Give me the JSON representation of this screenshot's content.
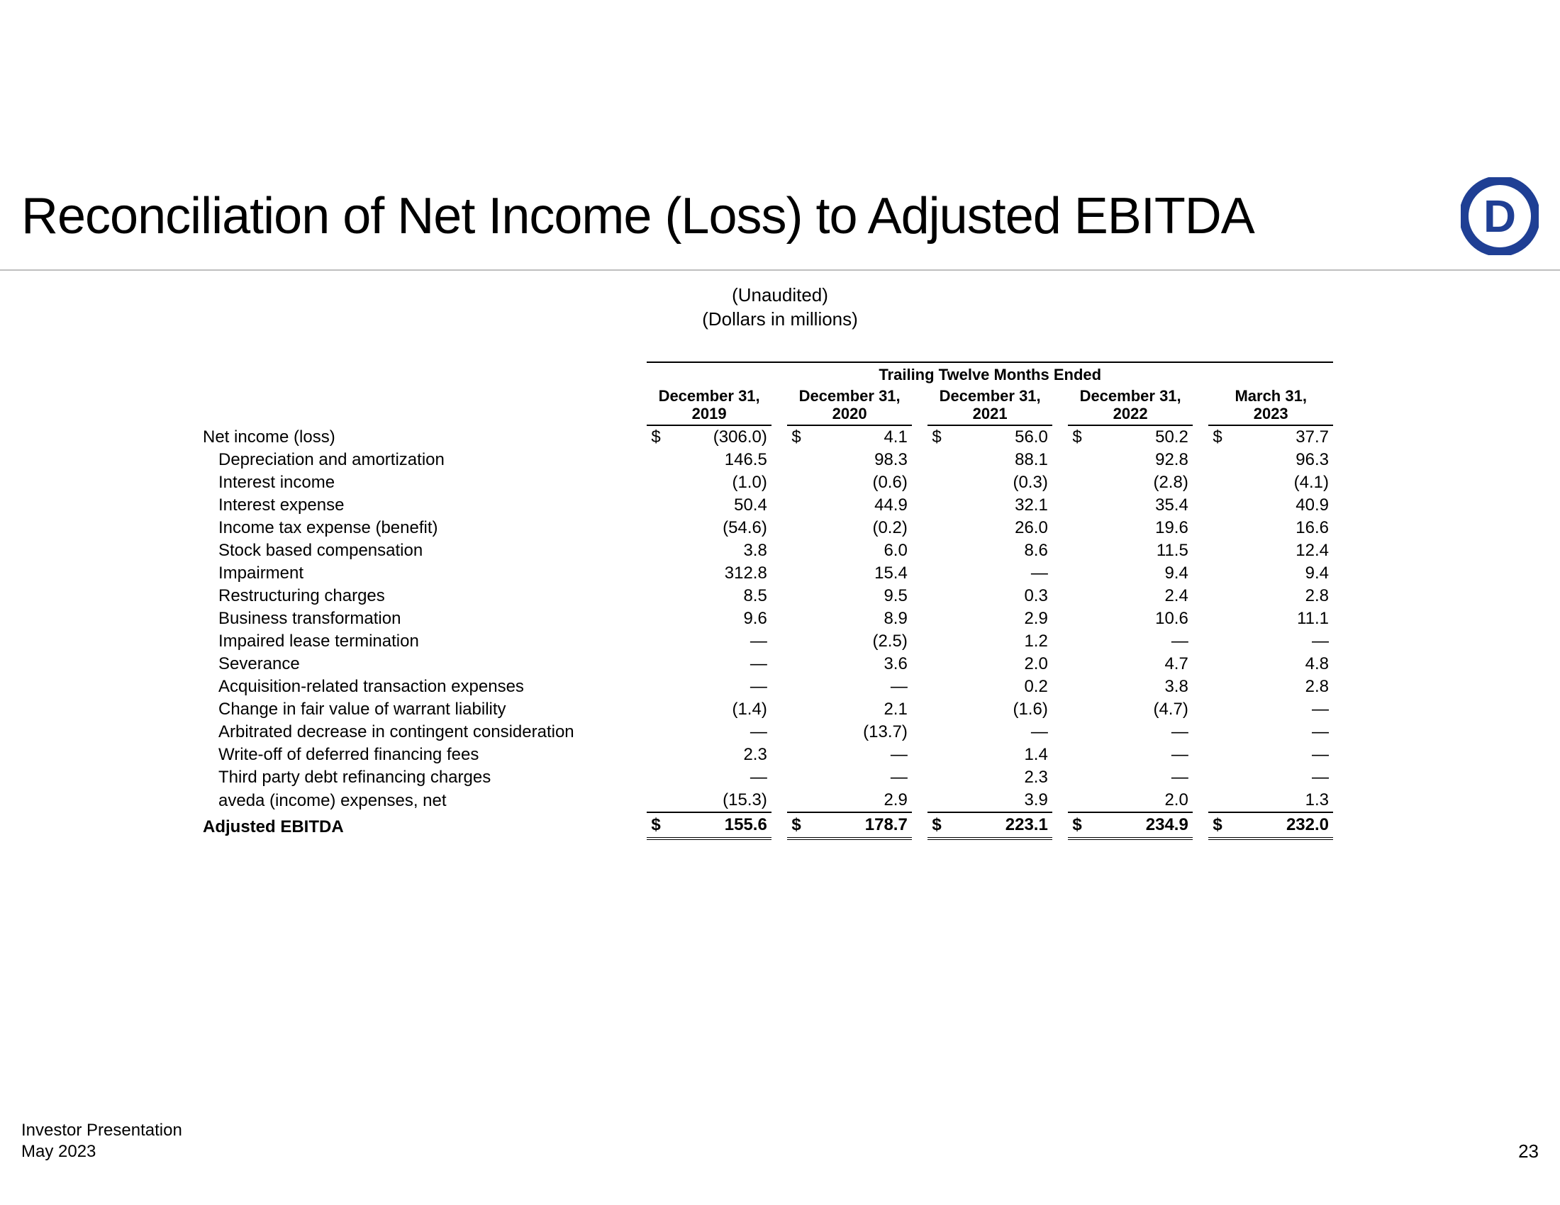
{
  "title": "Reconciliation of Net Income (Loss) to Adjusted EBITDA",
  "logo": {
    "letter": "D",
    "color": "#1f3f94"
  },
  "subtitle_line1": "(Unaudited)",
  "subtitle_line2": "(Dollars in millions)",
  "table": {
    "section_header": "Trailing Twelve Months Ended",
    "columns": [
      {
        "l1": "December 31,",
        "l2": "2019"
      },
      {
        "l1": "December 31,",
        "l2": "2020"
      },
      {
        "l1": "December 31,",
        "l2": "2021"
      },
      {
        "l1": "December 31,",
        "l2": "2022"
      },
      {
        "l1": "March 31,",
        "l2": "2023"
      }
    ],
    "rows": [
      {
        "label": "Net income (loss)",
        "indent": false,
        "first_has_dollar": true,
        "values": [
          "(306.0)",
          "4.1",
          "56.0",
          "50.2",
          "37.7"
        ]
      },
      {
        "label": "Depreciation and amortization",
        "indent": true,
        "values": [
          "146.5",
          "98.3",
          "88.1",
          "92.8",
          "96.3"
        ]
      },
      {
        "label": "Interest income",
        "indent": true,
        "values": [
          "(1.0)",
          "(0.6)",
          "(0.3)",
          "(2.8)",
          "(4.1)"
        ]
      },
      {
        "label": "Interest expense",
        "indent": true,
        "values": [
          "50.4",
          "44.9",
          "32.1",
          "35.4",
          "40.9"
        ]
      },
      {
        "label": "Income tax expense (benefit)",
        "indent": true,
        "values": [
          "(54.6)",
          "(0.2)",
          "26.0",
          "19.6",
          "16.6"
        ]
      },
      {
        "label": "Stock based compensation",
        "indent": true,
        "values": [
          "3.8",
          "6.0",
          "8.6",
          "11.5",
          "12.4"
        ]
      },
      {
        "label": "Impairment",
        "indent": true,
        "values": [
          "312.8",
          "15.4",
          "—",
          "9.4",
          "9.4"
        ]
      },
      {
        "label": "Restructuring charges",
        "indent": true,
        "values": [
          "8.5",
          "9.5",
          "0.3",
          "2.4",
          "2.8"
        ]
      },
      {
        "label": "Business transformation",
        "indent": true,
        "values": [
          "9.6",
          "8.9",
          "2.9",
          "10.6",
          "11.1"
        ]
      },
      {
        "label": "Impaired lease termination",
        "indent": true,
        "values": [
          "—",
          "(2.5)",
          "1.2",
          "—",
          "—"
        ]
      },
      {
        "label": "Severance",
        "indent": true,
        "values": [
          "—",
          "3.6",
          "2.0",
          "4.7",
          "4.8"
        ]
      },
      {
        "label": "Acquisition-related transaction expenses",
        "indent": true,
        "values": [
          "—",
          "—",
          "0.2",
          "3.8",
          "2.8"
        ]
      },
      {
        "label": "Change in fair value of warrant liability",
        "indent": true,
        "values": [
          "(1.4)",
          "2.1",
          "(1.6)",
          "(4.7)",
          "—"
        ]
      },
      {
        "label": "Arbitrated decrease in contingent consideration",
        "indent": true,
        "values": [
          "—",
          "(13.7)",
          "—",
          "—",
          "—"
        ]
      },
      {
        "label": "Write-off of deferred financing fees",
        "indent": true,
        "values": [
          "2.3",
          "—",
          "1.4",
          "—",
          "—"
        ]
      },
      {
        "label": "Third party debt refinancing charges",
        "indent": true,
        "values": [
          "—",
          "—",
          "2.3",
          "—",
          "—"
        ]
      },
      {
        "label": "aveda (income) expenses, net",
        "indent": true,
        "values": [
          "(15.3)",
          "2.9",
          "3.9",
          "2.0",
          "1.3"
        ]
      }
    ],
    "total": {
      "label": "Adjusted EBITDA",
      "values": [
        "155.6",
        "178.7",
        "223.1",
        "234.9",
        "232.0"
      ]
    }
  },
  "footer": {
    "line1": "Investor Presentation",
    "line2": "May 2023",
    "page": "23"
  }
}
